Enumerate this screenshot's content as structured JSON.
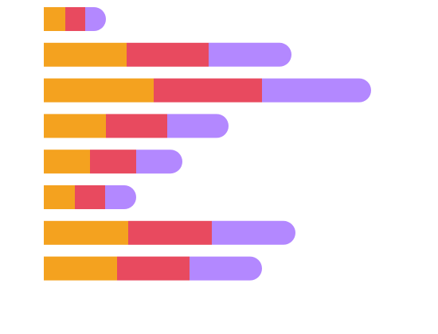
{
  "chart_data": {
    "type": "stacked-bar",
    "orientation": "horizontal",
    "categories": [
      null,
      null,
      null,
      null,
      null,
      null,
      null,
      null
    ],
    "series": [
      {
        "color": "#f4a21f",
        "values": [
          27,
          104,
          138,
          78,
          58,
          39,
          106,
          92
        ]
      },
      {
        "color": "#e84a5f",
        "values": [
          25,
          103,
          136,
          77,
          58,
          38,
          105,
          91
        ]
      },
      {
        "color": "#b388ff",
        "values": [
          26,
          104,
          137,
          77,
          58,
          39,
          105,
          91
        ]
      }
    ],
    "xlim": [
      0,
      480
    ],
    "rounded_end": true
  }
}
